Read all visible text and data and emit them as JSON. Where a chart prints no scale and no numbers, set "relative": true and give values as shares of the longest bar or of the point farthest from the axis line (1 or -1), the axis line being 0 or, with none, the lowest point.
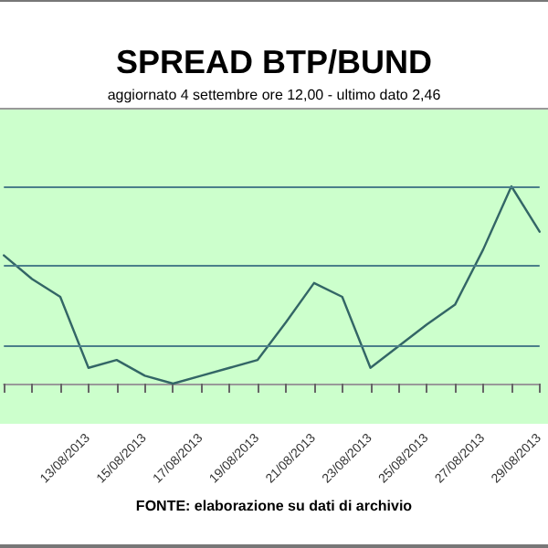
{
  "chart_data": {
    "type": "line",
    "title": "SPREAD BTP/BUND",
    "subtitle": "aggiornato 4 settembre ore 12,00 - ultimo dato 2,46",
    "annotations": [
      "FONTE: elaborazione su dati di archivio"
    ],
    "relative": true,
    "marker": "none",
    "line_style": "solid",
    "ref_lines": [
      {
        "axis": "y",
        "value": 1,
        "color": "#4a7f8a"
      },
      {
        "axis": "y",
        "value": 0.6,
        "color": "#4a7f8a"
      },
      {
        "axis": "y",
        "value": 0.19,
        "color": "#4a7f8a"
      }
    ],
    "categories": [
      null,
      null,
      null,
      "13/08/2013",
      null,
      "15/08/2013",
      null,
      "17/08/2013",
      null,
      "19/08/2013",
      null,
      "21/08/2013",
      null,
      "23/08/2013",
      null,
      "25/08/2013",
      null,
      "27/08/2013",
      null,
      "29/08/2013"
    ],
    "series": [
      {
        "color": "#336666",
        "values": [
          0.65,
          0.53,
          0.44,
          0.08,
          0.12,
          0.04,
          0,
          0.04,
          0.08,
          0.12,
          0.31,
          0.51,
          0.44,
          0.08,
          0.19,
          0.3,
          0.4,
          0.68,
          1,
          0.77
        ]
      }
    ]
  }
}
